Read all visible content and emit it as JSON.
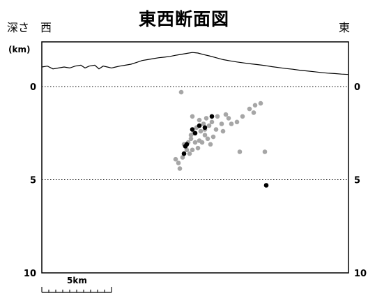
{
  "header": {
    "title": "東西断面図",
    "depth_label": "深さ",
    "west_label": "西",
    "east_label": "東",
    "unit_label": "(km)",
    "scale_label": "5km"
  },
  "chart_data": {
    "type": "scatter",
    "title": "東西断面図",
    "y_axis": {
      "label": "深さ",
      "unit": "(km)",
      "range": [
        -2.4,
        10
      ],
      "ticks": [
        0,
        5,
        10
      ],
      "inverted": true
    },
    "x_axis": {
      "range": [
        0,
        22
      ],
      "scale_bar_km": 5,
      "scale_bar_label": "5km"
    },
    "reference_lines": [
      0,
      5
    ],
    "colors": {
      "minor": "#a6a6a6",
      "major": "#000000",
      "topography": "#000000",
      "frame": "#000000"
    },
    "topography": [
      [
        0.0,
        -1.05
      ],
      [
        0.4,
        -1.1
      ],
      [
        0.8,
        -0.95
      ],
      [
        1.2,
        -1.0
      ],
      [
        1.6,
        -1.05
      ],
      [
        2.0,
        -1.0
      ],
      [
        2.4,
        -1.1
      ],
      [
        2.8,
        -1.15
      ],
      [
        3.1,
        -1.0
      ],
      [
        3.4,
        -1.1
      ],
      [
        3.8,
        -1.15
      ],
      [
        4.1,
        -0.95
      ],
      [
        4.4,
        -1.1
      ],
      [
        4.7,
        -1.05
      ],
      [
        5.0,
        -1.0
      ],
      [
        5.3,
        -1.05
      ],
      [
        5.6,
        -1.1
      ],
      [
        6.0,
        -1.15
      ],
      [
        6.4,
        -1.2
      ],
      [
        6.8,
        -1.3
      ],
      [
        7.2,
        -1.4
      ],
      [
        7.6,
        -1.45
      ],
      [
        8.0,
        -1.5
      ],
      [
        8.4,
        -1.55
      ],
      [
        8.8,
        -1.58
      ],
      [
        9.2,
        -1.62
      ],
      [
        9.6,
        -1.68
      ],
      [
        10.0,
        -1.73
      ],
      [
        10.4,
        -1.78
      ],
      [
        10.8,
        -1.83
      ],
      [
        11.2,
        -1.8
      ],
      [
        11.6,
        -1.72
      ],
      [
        12.0,
        -1.65
      ],
      [
        12.5,
        -1.55
      ],
      [
        13.0,
        -1.45
      ],
      [
        13.5,
        -1.38
      ],
      [
        14.0,
        -1.32
      ],
      [
        14.5,
        -1.27
      ],
      [
        15.0,
        -1.22
      ],
      [
        15.5,
        -1.18
      ],
      [
        16.0,
        -1.13
      ],
      [
        16.5,
        -1.07
      ],
      [
        17.0,
        -1.02
      ],
      [
        17.5,
        -0.97
      ],
      [
        18.0,
        -0.93
      ],
      [
        18.5,
        -0.88
      ],
      [
        19.0,
        -0.84
      ],
      [
        19.5,
        -0.8
      ],
      [
        20.0,
        -0.76
      ],
      [
        20.5,
        -0.72
      ],
      [
        21.0,
        -0.7
      ],
      [
        21.5,
        -0.67
      ],
      [
        22.0,
        -0.65
      ]
    ],
    "series": [
      {
        "kind": "minor",
        "points": [
          [
            10.0,
            0.3
          ],
          [
            10.8,
            1.6
          ],
          [
            11.3,
            1.8
          ],
          [
            11.8,
            1.7
          ],
          [
            12.2,
            1.9
          ],
          [
            12.6,
            1.6
          ],
          [
            13.2,
            1.5
          ],
          [
            13.4,
            1.7
          ],
          [
            13.6,
            2.0
          ],
          [
            14.0,
            1.9
          ],
          [
            14.4,
            1.6
          ],
          [
            14.9,
            1.2
          ],
          [
            15.3,
            1.0
          ],
          [
            15.7,
            0.9
          ],
          [
            15.2,
            1.4
          ],
          [
            12.9,
            2.0
          ],
          [
            12.0,
            2.1
          ],
          [
            11.7,
            2.3
          ],
          [
            11.4,
            2.4
          ],
          [
            11.1,
            2.2
          ],
          [
            10.9,
            2.5
          ],
          [
            10.7,
            2.8
          ],
          [
            10.5,
            3.0
          ],
          [
            10.2,
            3.1
          ],
          [
            10.4,
            3.4
          ],
          [
            10.6,
            3.6
          ],
          [
            10.1,
            3.8
          ],
          [
            9.6,
            3.9
          ],
          [
            9.8,
            4.1
          ],
          [
            9.9,
            4.4
          ],
          [
            10.8,
            3.4
          ],
          [
            11.2,
            3.3
          ],
          [
            11.5,
            3.0
          ],
          [
            11.9,
            2.8
          ],
          [
            12.3,
            2.7
          ],
          [
            11.7,
            2.6
          ],
          [
            11.0,
            3.0
          ],
          [
            11.6,
            2.0
          ],
          [
            12.5,
            2.3
          ],
          [
            13.0,
            2.4
          ],
          [
            12.1,
            3.1
          ],
          [
            10.7,
            2.6
          ],
          [
            11.3,
            2.9
          ],
          [
            14.2,
            3.5
          ],
          [
            16.0,
            3.5
          ]
        ]
      },
      {
        "kind": "major",
        "points": [
          [
            12.2,
            1.6
          ],
          [
            11.3,
            2.1
          ],
          [
            11.7,
            2.2
          ],
          [
            10.8,
            2.3
          ],
          [
            11.0,
            2.5
          ],
          [
            10.4,
            3.1
          ],
          [
            10.3,
            3.2
          ],
          [
            10.2,
            3.6
          ],
          [
            16.1,
            5.3
          ]
        ]
      }
    ]
  }
}
